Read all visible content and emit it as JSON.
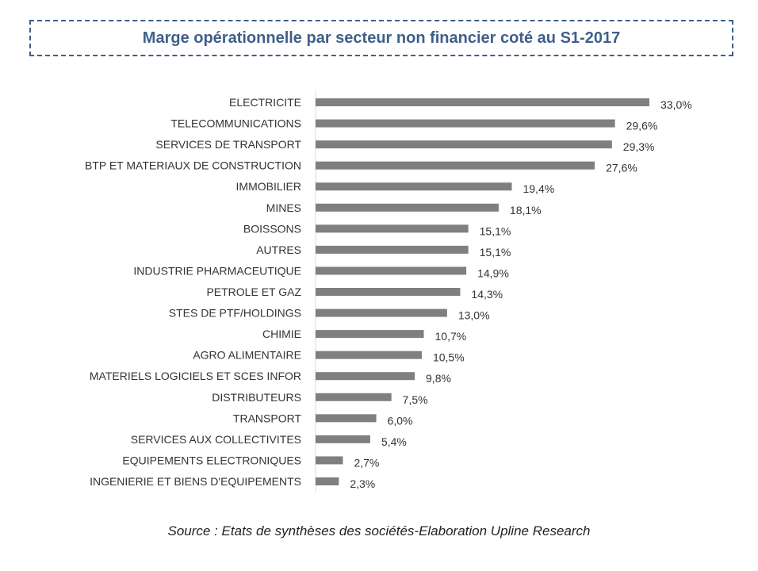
{
  "chart_data": {
    "type": "bar",
    "orientation": "horizontal",
    "title": "Marge opérationnelle par secteur non financier coté au S1-2017",
    "categories": [
      "ELECTRICITE",
      "TELECOMMUNICATIONS",
      "SERVICES DE TRANSPORT",
      "BTP ET MATERIAUX DE CONSTRUCTION",
      "IMMOBILIER",
      "MINES",
      "BOISSONS",
      "AUTRES",
      "INDUSTRIE PHARMACEUTIQUE",
      "PETROLE ET GAZ",
      "STES DE PTF/HOLDINGS",
      "CHIMIE",
      "AGRO ALIMENTAIRE",
      "MATERIELS LOGICIELS ET SCES INFOR",
      "DISTRIBUTEURS",
      "TRANSPORT",
      "SERVICES AUX COLLECTIVITES",
      "EQUIPEMENTS ELECTRONIQUES",
      "INGENIERIE ET BIENS D'EQUIPEMENTS"
    ],
    "values": [
      33.0,
      29.6,
      29.3,
      27.6,
      19.4,
      18.1,
      15.1,
      15.1,
      14.9,
      14.3,
      13.0,
      10.7,
      10.5,
      9.8,
      7.5,
      6.0,
      5.4,
      2.7,
      2.3
    ],
    "data_labels": [
      "33,0%",
      "29,6%",
      "29,3%",
      "27,6%",
      "19,4%",
      "18,1%",
      "15,1%",
      "15,1%",
      "14,9%",
      "14,3%",
      "13,0%",
      "10,7%",
      "10,5%",
      "9,8%",
      "7,5%",
      "6,0%",
      "5,4%",
      "2,7%",
      "2,3%"
    ],
    "unit": "%",
    "xlim": [
      0,
      33
    ],
    "grid": false,
    "bar_color": "#7f7f7f",
    "title_color": "#3f5f8a"
  },
  "source": "Source : Etats de synthèses des sociétés-Elaboration Upline Research"
}
